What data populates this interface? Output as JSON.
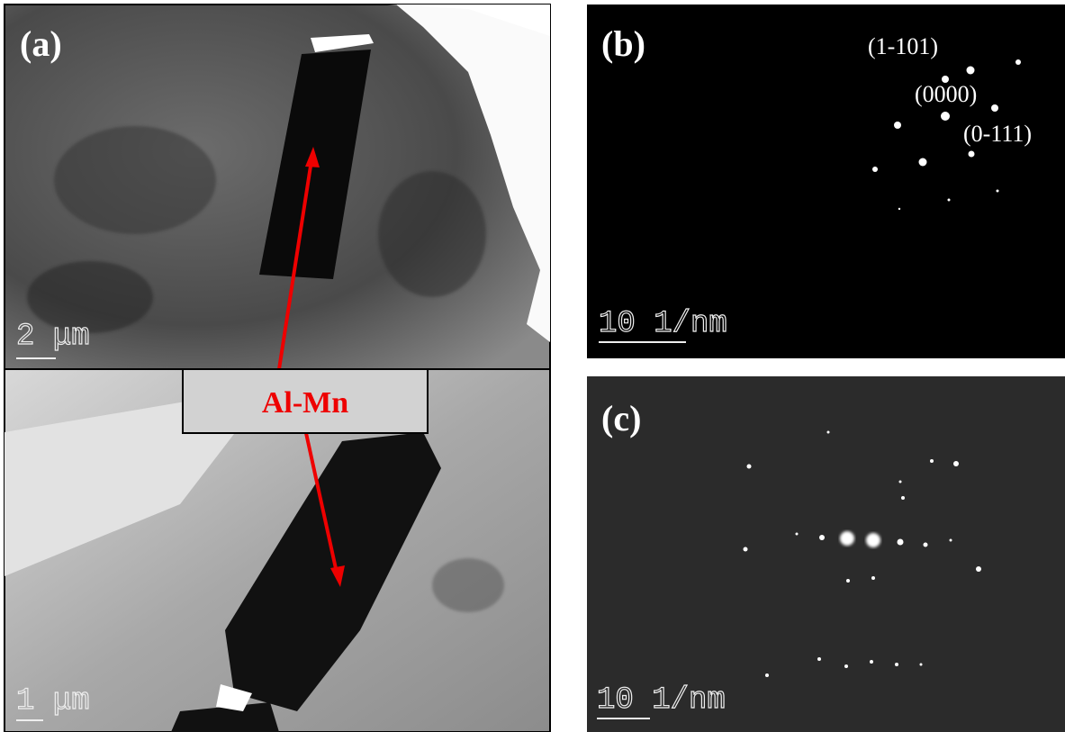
{
  "panels": {
    "a": {
      "label": "(a)",
      "scale_top": "2 μm",
      "scale_bottom": "1 μm",
      "annotation": "Al-Mn"
    },
    "b": {
      "label": "(b)",
      "scale": "10 1/nm",
      "indices": [
        "(1-101)",
        "(0000)",
        "(0-111)"
      ]
    },
    "c": {
      "label": "(c)",
      "scale": "10 1/nm"
    }
  }
}
